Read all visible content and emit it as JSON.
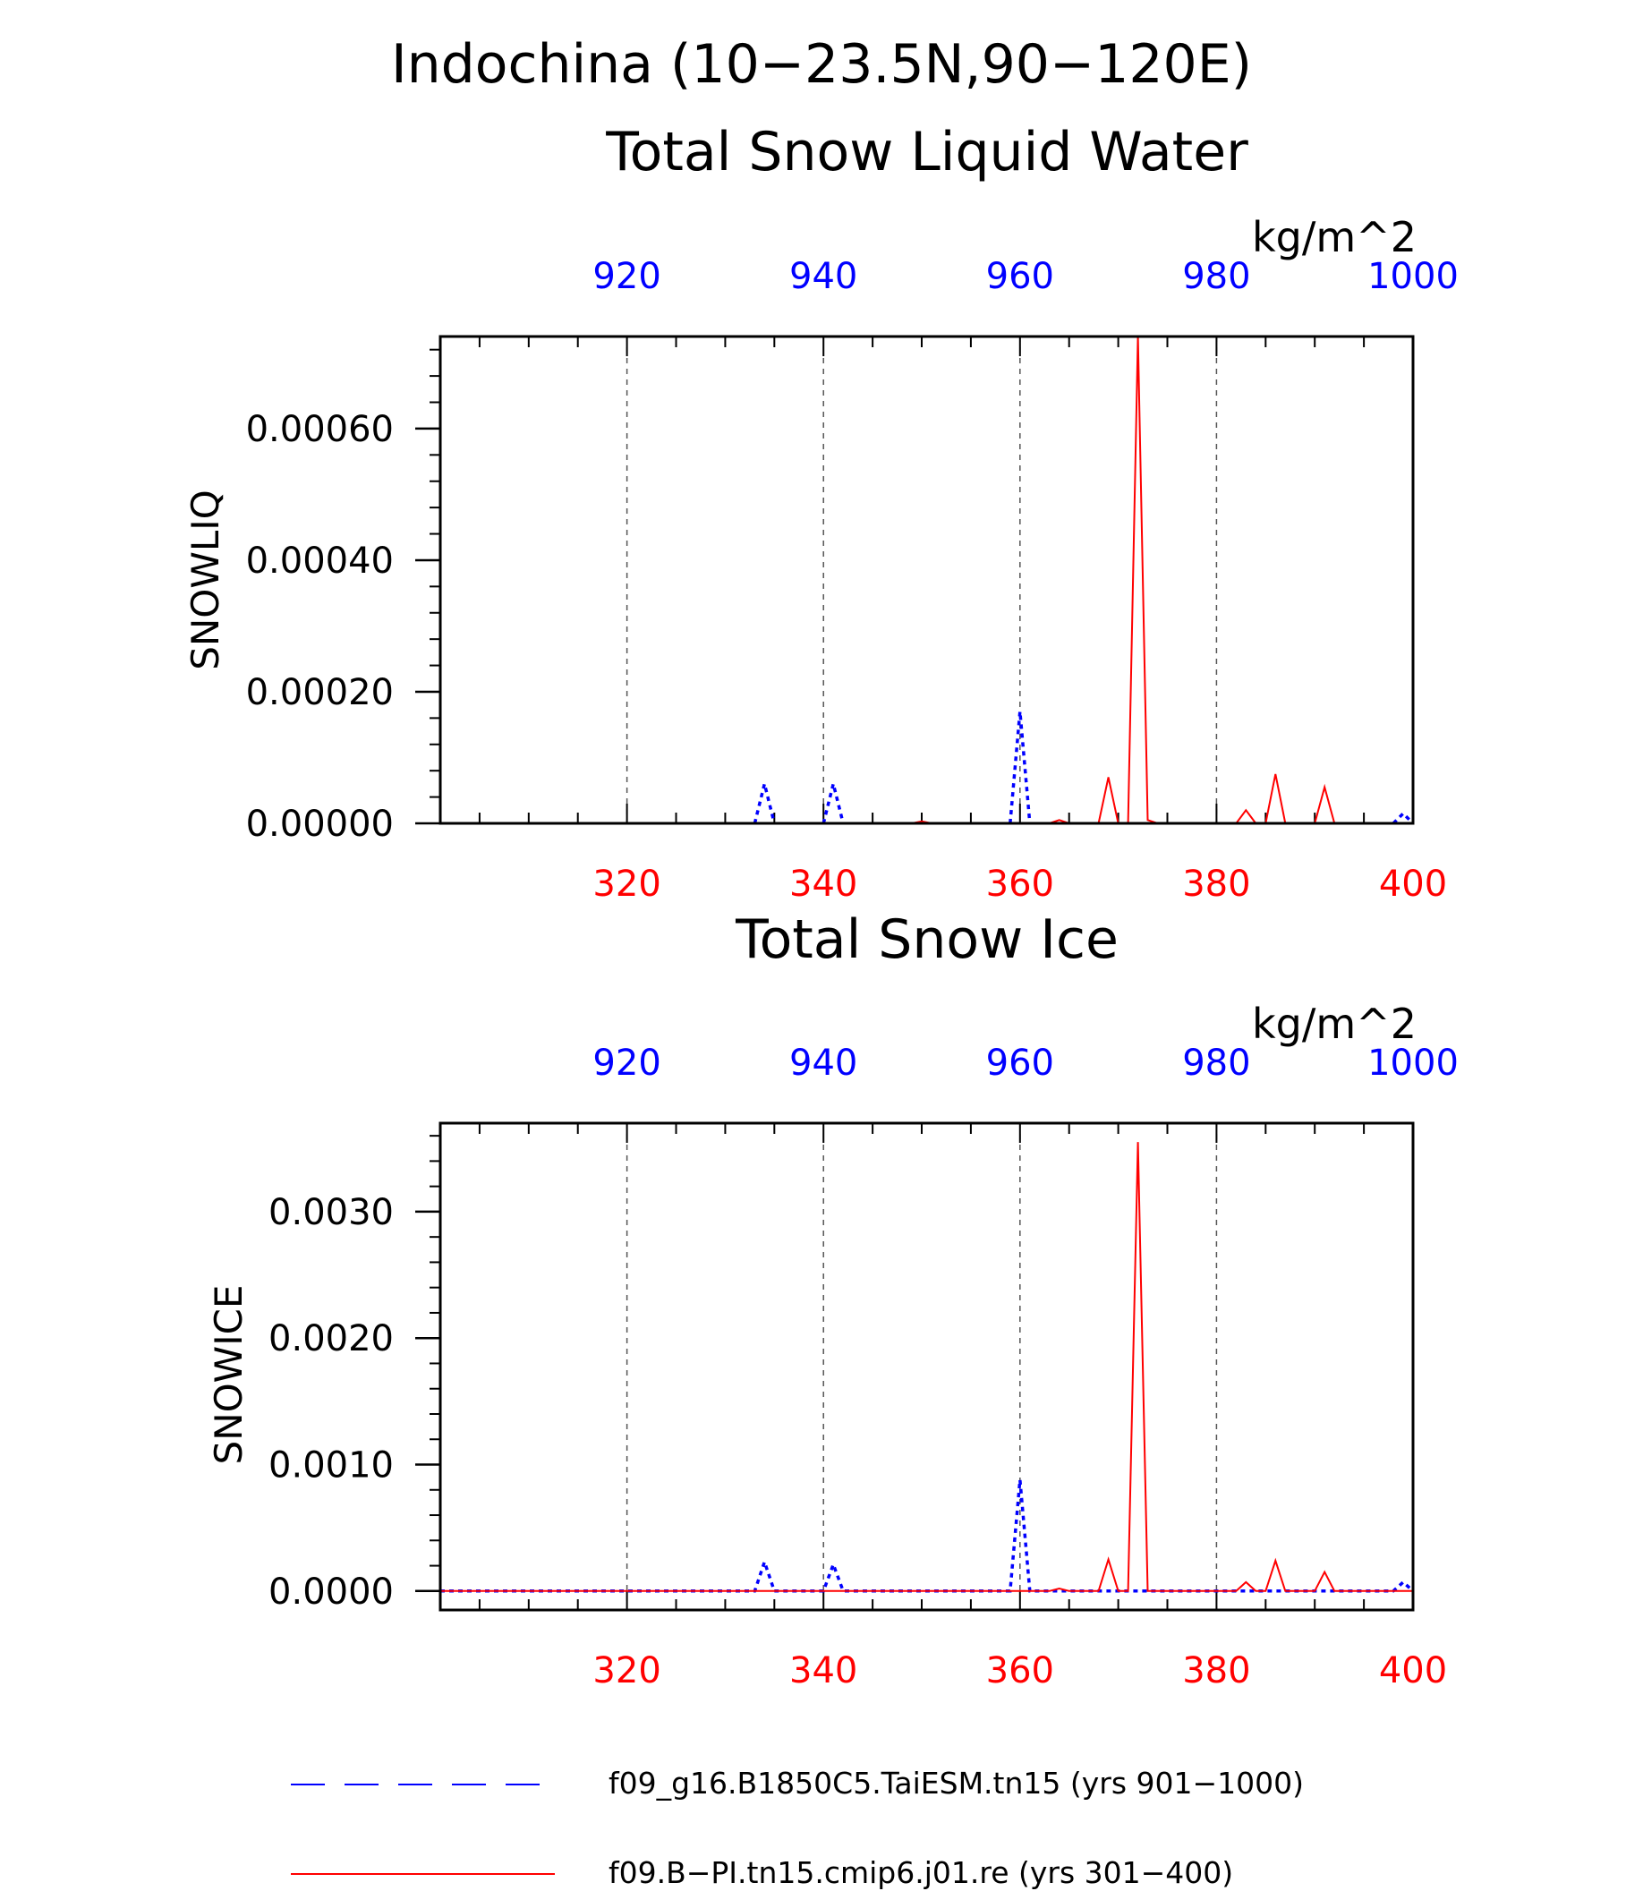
{
  "figure": {
    "title_line1": "Indochina (10−23.5N,90−120E)"
  },
  "legend": {
    "entries": [
      {
        "label": "f09_g16.B1850C5.TaiESM.tn15 (yrs 901−1000)",
        "color": "#0000ff",
        "style": "dashed"
      },
      {
        "label": "f09.B−PI.tn15.cmip6.j01.re (yrs 301−400)",
        "color": "#ff0000",
        "style": "solid"
      }
    ]
  },
  "chart_data": [
    {
      "type": "line",
      "title": "Total Snow Liquid Water",
      "ylabel": "SNOWLIQ",
      "units": "kg/m^2",
      "ylim": [
        0,
        0.00074
      ],
      "y_ticks": [
        "0.00000",
        "0.00020",
        "0.00040",
        "0.00060"
      ],
      "y_tick_values": [
        0,
        0.0002,
        0.0004,
        0.0006
      ],
      "bottom_axis": {
        "xlim": [
          301,
          400
        ],
        "ticks": [
          320,
          340,
          360,
          380,
          400
        ],
        "color": "#ff0000"
      },
      "top_axis": {
        "xlim": [
          901,
          1000
        ],
        "ticks": [
          920,
          940,
          960,
          980,
          1000
        ],
        "color": "#0000ff"
      },
      "grid": "dashed vertical lines at major x ticks",
      "series": [
        {
          "axis": "top",
          "color": "#0000ff",
          "style": "dotted",
          "segments": [
            {
              "x": [
                933,
                934,
                935
              ],
              "y": [
                0,
                6e-05,
                0
              ]
            },
            {
              "x": [
                940,
                941,
                942
              ],
              "y": [
                0,
                6e-05,
                0
              ]
            },
            {
              "x": [
                959,
                960,
                961
              ],
              "y": [
                0,
                0.00017,
                0
              ]
            },
            {
              "x": [
                998,
                999,
                1000
              ],
              "y": [
                0,
                1.5e-05,
                0
              ]
            }
          ]
        },
        {
          "axis": "bottom",
          "color": "#ff0000",
          "style": "solid",
          "segments": [
            {
              "x": [
                349,
                350,
                351
              ],
              "y": [
                0,
                3e-06,
                0
              ]
            },
            {
              "x": [
                363,
                364,
                365
              ],
              "y": [
                0,
                5e-06,
                0
              ]
            },
            {
              "x": [
                368,
                369,
                370
              ],
              "y": [
                0,
                7e-05,
                0
              ]
            },
            {
              "x": [
                371,
                372,
                373,
                374
              ],
              "y": [
                0,
                0.00074,
                5e-06,
                0
              ]
            },
            {
              "x": [
                382,
                383,
                384
              ],
              "y": [
                0,
                2e-05,
                0
              ]
            },
            {
              "x": [
                385,
                386,
                387
              ],
              "y": [
                0,
                7.5e-05,
                0
              ]
            },
            {
              "x": [
                390,
                391,
                392
              ],
              "y": [
                0,
                5.5e-05,
                0
              ]
            }
          ]
        }
      ]
    },
    {
      "type": "line",
      "title": "Total Snow Ice",
      "ylabel": "SNOWICE",
      "units": "kg/m^2",
      "ylim": [
        -0.00015,
        0.0037
      ],
      "y_ticks": [
        "0.0000",
        "0.0010",
        "0.0020",
        "0.0030"
      ],
      "y_tick_values": [
        0,
        0.001,
        0.002,
        0.003
      ],
      "bottom_axis": {
        "xlim": [
          301,
          400
        ],
        "ticks": [
          320,
          340,
          360,
          380,
          400
        ],
        "color": "#ff0000"
      },
      "top_axis": {
        "xlim": [
          901,
          1000
        ],
        "ticks": [
          920,
          940,
          960,
          980,
          1000
        ],
        "color": "#0000ff"
      },
      "grid": "dashed vertical lines at major x ticks",
      "series": [
        {
          "axis": "top",
          "color": "#0000ff",
          "style": "dotted",
          "segments": [
            {
              "x": [
                901,
                933,
                934,
                935,
                940,
                941,
                942,
                959,
                960,
                961,
                998,
                999,
                1000
              ],
              "y": [
                0,
                0,
                0.00023,
                0,
                0,
                0.00021,
                0,
                0,
                0.00088,
                0,
                0,
                7e-05,
                0
              ]
            }
          ]
        },
        {
          "axis": "bottom",
          "color": "#ff0000",
          "style": "solid",
          "segments": [
            {
              "x": [
                301,
                363,
                364,
                365,
                368,
                369,
                370,
                371,
                372,
                373,
                382,
                383,
                384,
                385,
                386,
                387,
                390,
                391,
                392,
                400
              ],
              "y": [
                0,
                0,
                2e-05,
                0,
                0,
                0.00025,
                0,
                0,
                0.00355,
                0,
                0,
                7e-05,
                0,
                0,
                0.00024,
                0,
                0,
                0.00015,
                0,
                0
              ]
            }
          ]
        }
      ]
    }
  ]
}
